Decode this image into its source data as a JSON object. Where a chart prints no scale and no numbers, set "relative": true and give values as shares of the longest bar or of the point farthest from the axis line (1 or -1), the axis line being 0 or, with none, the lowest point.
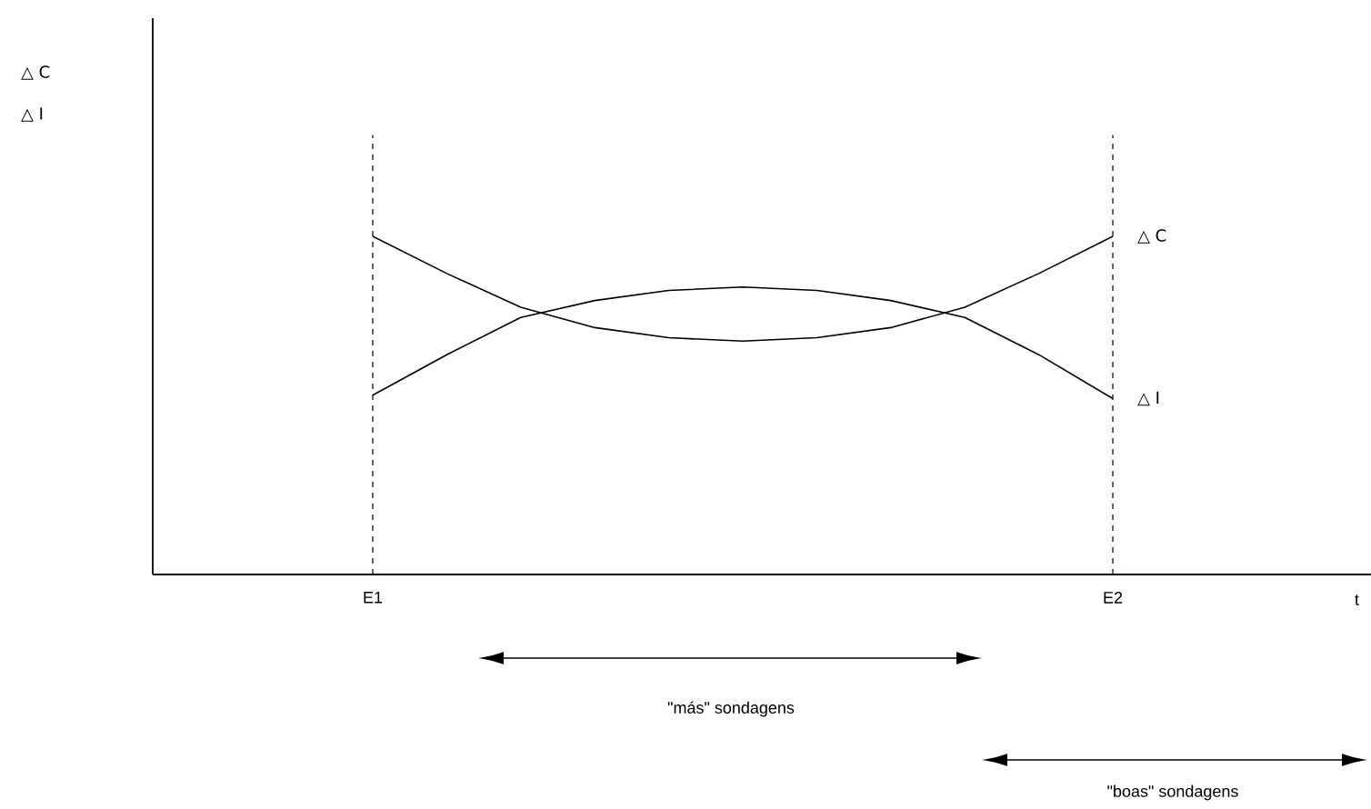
{
  "chart_data": {
    "type": "line",
    "relative": true,
    "categories": [
      "E1",
      null,
      null,
      null,
      null,
      null,
      null,
      null,
      null,
      null,
      "E2"
    ],
    "series": [
      {
        "name": "△ C",
        "color": "#000000",
        "values": [
          1.0,
          0.89,
          0.79,
          0.73,
          0.7,
          0.69,
          0.7,
          0.73,
          0.79,
          0.89,
          1.0
        ]
      },
      {
        "name": "△ I",
        "color": "#000000",
        "values": [
          0.53,
          0.65,
          0.76,
          0.81,
          0.84,
          0.85,
          0.84,
          0.81,
          0.76,
          0.65,
          0.52
        ]
      }
    ],
    "ref_lines": [
      {
        "axis": "x",
        "value": "E1",
        "line_style": "dashed"
      },
      {
        "axis": "x",
        "value": "E2",
        "line_style": "dashed"
      }
    ],
    "annotations": [
      "△ C",
      "△ I",
      "\"más\" sondagens",
      "\"boas\" sondagens",
      "t"
    ],
    "legend": false
  }
}
